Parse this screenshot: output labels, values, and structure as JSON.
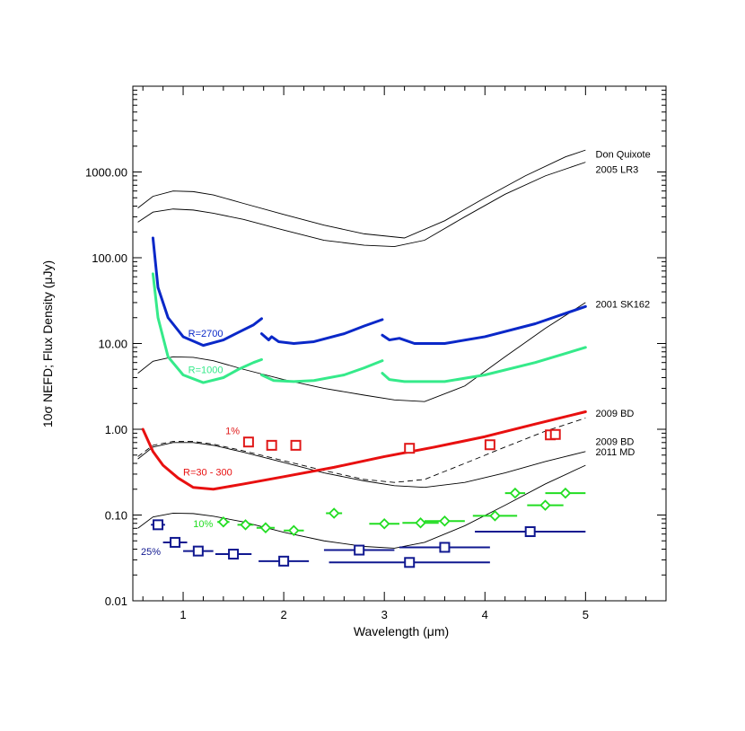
{
  "chart_data": {
    "type": "line",
    "title": "",
    "xlabel": "Wavelength (μm)",
    "ylabel": "10σ NEFD; Flux Density (μJy)",
    "xscale": "linear",
    "yscale": "log",
    "xlim": [
      0.5,
      5.8
    ],
    "ylim": [
      0.01,
      10000
    ],
    "x_ticks": [
      1,
      2,
      3,
      4,
      5
    ],
    "y_ticks": [
      0.01,
      0.1,
      1,
      10,
      100,
      1000
    ],
    "y_tick_labels": [
      "0.01",
      "0.10",
      "1.00",
      "10.00",
      "100.00",
      "1000.00"
    ],
    "x_tick_labels": [
      "1",
      "2",
      "3",
      "4",
      "5"
    ],
    "colors": {
      "r2700": "#0a28c8",
      "r1000": "#35ea8a",
      "r30": "#e81010",
      "model": "#000000",
      "red_points": "#e01818",
      "green_points": "#22dd22",
      "blue_points": "#101890"
    },
    "model_curves": [
      {
        "name": "Don Quixote",
        "label": "Don Quixote",
        "style": "solid",
        "x": [
          0.55,
          0.7,
          0.9,
          1.1,
          1.3,
          1.6,
          2.0,
          2.4,
          2.8,
          3.2,
          3.6,
          4.0,
          4.4,
          4.8,
          5.0
        ],
        "y": [
          380,
          520,
          600,
          590,
          540,
          430,
          320,
          240,
          190,
          170,
          270,
          500,
          900,
          1500,
          1800
        ]
      },
      {
        "name": "2005 LR3",
        "label": "2005 LR3",
        "style": "solid",
        "x": [
          0.55,
          0.7,
          0.9,
          1.1,
          1.3,
          1.6,
          2.0,
          2.4,
          2.8,
          3.1,
          3.4,
          3.8,
          4.2,
          4.6,
          5.0
        ],
        "y": [
          260,
          340,
          370,
          360,
          330,
          280,
          210,
          160,
          140,
          135,
          160,
          300,
          550,
          900,
          1300
        ]
      },
      {
        "name": "2001 SK162",
        "label": "2001 SK162",
        "style": "solid",
        "x": [
          0.55,
          0.7,
          0.9,
          1.1,
          1.3,
          1.6,
          2.0,
          2.4,
          2.8,
          3.1,
          3.4,
          3.8,
          4.2,
          4.6,
          5.0
        ],
        "y": [
          4.5,
          6.2,
          7.0,
          6.9,
          6.3,
          5.0,
          3.8,
          3.0,
          2.5,
          2.2,
          2.1,
          3.2,
          7.0,
          15,
          30
        ]
      },
      {
        "name": "2009 BD (dashed)",
        "label": "2009 BD",
        "style": "dashed",
        "x": [
          0.55,
          0.7,
          0.9,
          1.1,
          1.3,
          1.6,
          2.0,
          2.4,
          2.8,
          3.1,
          3.4,
          3.8,
          4.2,
          4.6,
          5.0
        ],
        "y": [
          0.48,
          0.65,
          0.72,
          0.72,
          0.67,
          0.56,
          0.43,
          0.33,
          0.26,
          0.24,
          0.26,
          0.4,
          0.62,
          0.95,
          1.35
        ]
      },
      {
        "name": "2009 BD (solid)",
        "label": "2009 BD",
        "style": "solid",
        "x": [
          0.55,
          0.7,
          0.9,
          1.1,
          1.3,
          1.6,
          2.0,
          2.4,
          2.8,
          3.1,
          3.4,
          3.8,
          4.2,
          4.6,
          5.0
        ],
        "y": [
          0.45,
          0.62,
          0.7,
          0.7,
          0.65,
          0.54,
          0.41,
          0.31,
          0.25,
          0.22,
          0.21,
          0.24,
          0.31,
          0.42,
          0.55
        ]
      },
      {
        "name": "2011 MD",
        "label": "2011 MD",
        "style": "solid",
        "x": [
          0.55,
          0.7,
          0.9,
          1.1,
          1.3,
          1.6,
          2.0,
          2.4,
          2.8,
          3.1,
          3.4,
          3.8,
          4.2,
          4.6,
          5.0
        ],
        "y": [
          0.07,
          0.095,
          0.105,
          0.104,
          0.097,
          0.083,
          0.063,
          0.05,
          0.043,
          0.041,
          0.048,
          0.075,
          0.13,
          0.23,
          0.38
        ]
      }
    ],
    "sensitivity_series": [
      {
        "name": "R=2700",
        "label": "R=2700",
        "color": "#0a28c8",
        "width": 3,
        "segments": [
          {
            "x": [
              0.7,
              0.75,
              0.85,
              1.0,
              1.2,
              1.4,
              1.55,
              1.7,
              1.78
            ],
            "y": [
              170,
              45,
              20,
              12,
              9.5,
              11,
              13.5,
              16.5,
              19.5
            ]
          },
          {
            "x": [
              1.78,
              1.85,
              1.88,
              1.95,
              2.1,
              2.3,
              2.6,
              2.8,
              2.98
            ],
            "y": [
              13,
              11,
              12,
              10.5,
              10,
              10.5,
              13,
              16,
              19
            ]
          },
          {
            "x": [
              2.98,
              3.05,
              3.15,
              3.3,
              3.6,
              4.0,
              4.5,
              5.0
            ],
            "y": [
              12.5,
              11,
              11.5,
              10,
              10,
              12,
              17,
              27
            ]
          }
        ]
      },
      {
        "name": "R=1000",
        "label": "R=1000",
        "color": "#35ea8a",
        "width": 3,
        "segments": [
          {
            "x": [
              0.7,
              0.75,
              0.85,
              1.0,
              1.2,
              1.4,
              1.55,
              1.7,
              1.78
            ],
            "y": [
              65,
              20,
              7,
              4.3,
              3.5,
              4.0,
              5.0,
              6.0,
              6.5
            ]
          },
          {
            "x": [
              1.78,
              1.9,
              2.1,
              2.3,
              2.6,
              2.8,
              2.98
            ],
            "y": [
              4.3,
              3.7,
              3.6,
              3.7,
              4.3,
              5.2,
              6.3
            ]
          },
          {
            "x": [
              2.98,
              3.05,
              3.2,
              3.6,
              4.0,
              4.5,
              5.0
            ],
            "y": [
              4.5,
              3.8,
              3.6,
              3.6,
              4.3,
              6.0,
              9.0
            ]
          }
        ]
      },
      {
        "name": "R=30 - 300",
        "label": "R=30 - 300",
        "color": "#e81010",
        "width": 3,
        "segments": [
          {
            "x": [
              0.6,
              0.7,
              0.8,
              0.95,
              1.1,
              1.3,
              1.6,
              2.0,
              2.5,
              3.0,
              3.5,
              4.0,
              4.5,
              5.0
            ],
            "y": [
              1.0,
              0.55,
              0.38,
              0.27,
              0.21,
              0.2,
              0.23,
              0.28,
              0.36,
              0.48,
              0.62,
              0.82,
              1.15,
              1.6
            ]
          }
        ]
      }
    ],
    "point_series": [
      {
        "name": "1%",
        "label": "1%",
        "color": "#e01818",
        "marker": "square",
        "points": [
          {
            "x": 1.65,
            "y": 0.71
          },
          {
            "x": 1.88,
            "y": 0.65
          },
          {
            "x": 2.12,
            "y": 0.65
          },
          {
            "x": 3.25,
            "y": 0.6
          },
          {
            "x": 4.05,
            "y": 0.66
          },
          {
            "x": 4.65,
            "y": 0.86
          },
          {
            "x": 4.7,
            "y": 0.87
          }
        ]
      },
      {
        "name": "10%",
        "label": "10%",
        "color": "#22dd22",
        "marker": "diamond",
        "points": [
          {
            "x": 1.4,
            "y": 0.083,
            "xerr": 0.06
          },
          {
            "x": 1.62,
            "y": 0.077,
            "xerr": 0.08
          },
          {
            "x": 1.82,
            "y": 0.071,
            "xerr": 0.09
          },
          {
            "x": 2.1,
            "y": 0.066,
            "xerr": 0.1
          },
          {
            "x": 2.5,
            "y": 0.105,
            "xerr": 0.08
          },
          {
            "x": 3.0,
            "y": 0.079,
            "xerr": 0.15
          },
          {
            "x": 3.36,
            "y": 0.081,
            "xerr": 0.18
          },
          {
            "x": 3.6,
            "y": 0.085,
            "xerr": 0.2
          },
          {
            "x": 4.1,
            "y": 0.098,
            "xerr": 0.22
          },
          {
            "x": 4.3,
            "y": 0.18,
            "xerr": 0.1
          },
          {
            "x": 4.6,
            "y": 0.13,
            "xerr": 0.18
          },
          {
            "x": 4.8,
            "y": 0.18,
            "xerr": 0.2
          }
        ]
      },
      {
        "name": "25%",
        "label": "25%",
        "color": "#101890",
        "marker": "square",
        "points": [
          {
            "x": 0.75,
            "y": 0.077,
            "xerr": 0.07
          },
          {
            "x": 0.92,
            "y": 0.048,
            "xerr": 0.12
          },
          {
            "x": 1.15,
            "y": 0.038,
            "xerr": 0.15
          },
          {
            "x": 1.5,
            "y": 0.035,
            "xerr": 0.18
          },
          {
            "x": 2.0,
            "y": 0.029,
            "xerr": 0.25
          },
          {
            "x": 2.75,
            "y": 0.039,
            "xerr": 0.35
          },
          {
            "x": 3.25,
            "y": 0.028,
            "xerr": 0.8
          },
          {
            "x": 3.6,
            "y": 0.042,
            "xerr": 0.45
          },
          {
            "x": 4.45,
            "y": 0.064,
            "xerr": 0.55
          }
        ]
      }
    ]
  }
}
